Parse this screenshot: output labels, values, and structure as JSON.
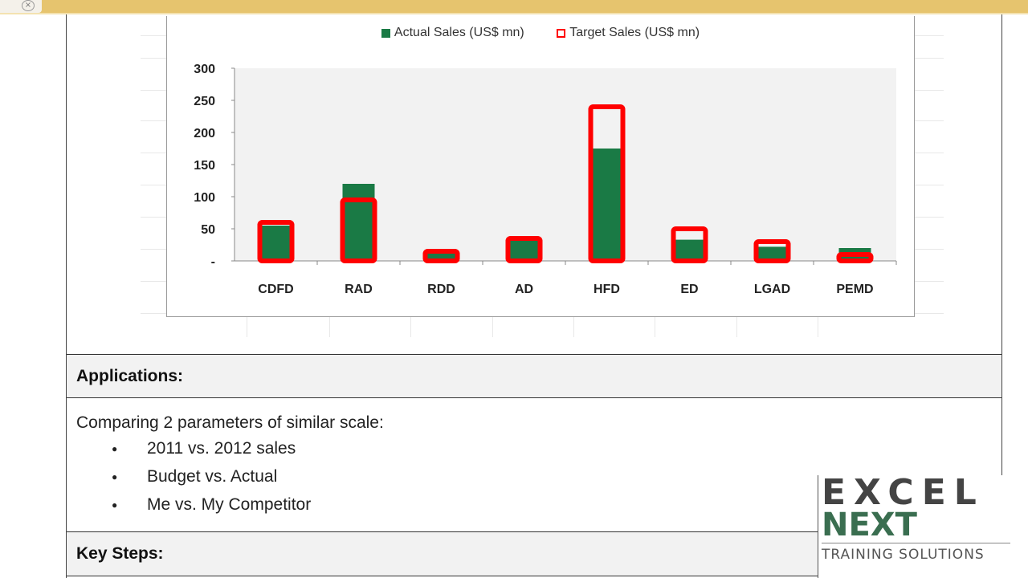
{
  "chart_data": {
    "type": "bar",
    "categories": [
      "CDFD",
      "RAD",
      "RDD",
      "AD",
      "HFD",
      "ED",
      "LGAD",
      "PEMD"
    ],
    "series": [
      {
        "name": "Actual Sales (US$ mn)",
        "values": [
          55,
          120,
          12,
          32,
          175,
          33,
          22,
          20
        ],
        "color": "#1a7a45"
      },
      {
        "name": "Target Sales (US$ mn)",
        "values": [
          60,
          95,
          15,
          35,
          240,
          50,
          30,
          10
        ],
        "color": "#ff0000"
      }
    ],
    "yticks": [
      "300",
      "250",
      "200",
      "150",
      "100",
      "50",
      "-"
    ],
    "ylim": [
      0,
      300
    ],
    "legend": "top"
  },
  "applications": {
    "title": "Applications:",
    "intro": "Comparing 2 parameters of similar scale:",
    "items": [
      "2011 vs. 2012 sales",
      "Budget vs. Actual",
      "Me vs. My Competitor"
    ]
  },
  "key_steps": {
    "title": "Key Steps:"
  },
  "logo": {
    "line1": "EXCEL",
    "line2": "NEXT",
    "line3": "TRAINING SOLUTIONS"
  }
}
